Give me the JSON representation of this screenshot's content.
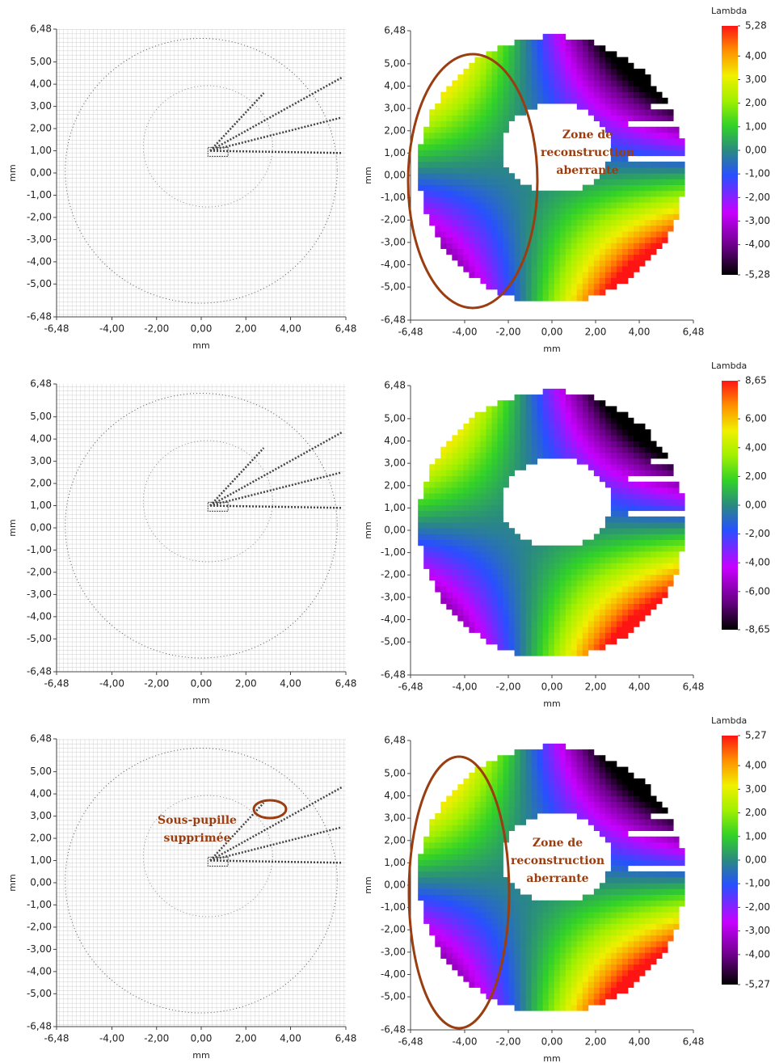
{
  "chart_data": [
    {
      "type": "vector-grid",
      "xlabel": "mm",
      "ylabel": "mm",
      "xlim": [
        -6.48,
        6.48
      ],
      "ylim": [
        -6.48,
        6.48
      ],
      "xticks": [
        {
          "value": -6.48,
          "label": "-6,48"
        },
        {
          "value": -4,
          "label": "-4,00"
        },
        {
          "value": -2,
          "label": "-2,00"
        },
        {
          "value": 0,
          "label": "0,00"
        },
        {
          "value": 2,
          "label": "2,00"
        },
        {
          "value": 4,
          "label": "4,00"
        },
        {
          "value": 6.48,
          "label": "6,48"
        }
      ],
      "yticks": [
        {
          "value": -6.48,
          "label": "-6,48"
        },
        {
          "value": -5,
          "label": "-5,00"
        },
        {
          "value": -4,
          "label": "-4,00"
        },
        {
          "value": -3,
          "label": "-3,00"
        },
        {
          "value": -2,
          "label": "-2,00"
        },
        {
          "value": -1,
          "label": "-1,00"
        },
        {
          "value": 0,
          "label": "0,00"
        },
        {
          "value": 1,
          "label": "1,00"
        },
        {
          "value": 2,
          "label": "2,00"
        },
        {
          "value": 3,
          "label": "3,00"
        },
        {
          "value": 4,
          "label": "4,00"
        },
        {
          "value": 5,
          "label": "5,00"
        },
        {
          "value": 6.48,
          "label": "6,48"
        }
      ]
    },
    {
      "type": "heatmap",
      "xlabel": "mm",
      "ylabel": "mm",
      "xlim": [
        -6.48,
        6.48
      ],
      "ylim": [
        -6.48,
        6.48
      ],
      "xticks": [
        {
          "value": -6.48,
          "label": "-6,48"
        },
        {
          "value": -4,
          "label": "-4,00"
        },
        {
          "value": -2,
          "label": "-2,00"
        },
        {
          "value": 0,
          "label": "0,00"
        },
        {
          "value": 2,
          "label": "2,00"
        },
        {
          "value": 4,
          "label": "4,00"
        },
        {
          "value": 6.48,
          "label": "6,48"
        }
      ],
      "yticks": [
        {
          "value": -6.48,
          "label": "-6,48"
        },
        {
          "value": -5,
          "label": "-5,00"
        },
        {
          "value": -4,
          "label": "-4,00"
        },
        {
          "value": -3,
          "label": "-3,00"
        },
        {
          "value": -2,
          "label": "-2,00"
        },
        {
          "value": -1,
          "label": "-1,00"
        },
        {
          "value": 0,
          "label": "0,00"
        },
        {
          "value": 1,
          "label": "1,00"
        },
        {
          "value": 2,
          "label": "2,00"
        },
        {
          "value": 3,
          "label": "3,00"
        },
        {
          "value": 4,
          "label": "4,00"
        },
        {
          "value": 5,
          "label": "5,00"
        },
        {
          "value": 6.48,
          "label": "6,48"
        }
      ],
      "colorbar_title": "Lambda",
      "clim": [
        -5.28,
        5.28
      ],
      "cticks": [
        {
          "value": 5.28,
          "label": "5,28"
        },
        {
          "value": 4,
          "label": "4,00"
        },
        {
          "value": 3,
          "label": "3,00"
        },
        {
          "value": 2,
          "label": "2,00"
        },
        {
          "value": 1,
          "label": "1,00"
        },
        {
          "value": 0,
          "label": "0,00"
        },
        {
          "value": -1,
          "label": "-1,00"
        },
        {
          "value": -2,
          "label": "-2,00"
        },
        {
          "value": -3,
          "label": "-3,00"
        },
        {
          "value": -4,
          "label": "-4,00"
        },
        {
          "value": -5.28,
          "label": "-5,28"
        }
      ],
      "annotation": [
        "Zone de",
        "reconstruction",
        "aberrante"
      ]
    },
    {
      "type": "vector-grid",
      "xlabel": "mm",
      "ylabel": "mm",
      "xlim": [
        -6.48,
        6.48
      ],
      "ylim": [
        -6.48,
        6.48
      ],
      "xticks": [
        {
          "value": -6.48,
          "label": "-6,48"
        },
        {
          "value": -4,
          "label": "-4,00"
        },
        {
          "value": -2,
          "label": "-2,00"
        },
        {
          "value": 0,
          "label": "0,00"
        },
        {
          "value": 2,
          "label": "2,00"
        },
        {
          "value": 4,
          "label": "4,00"
        },
        {
          "value": 6.48,
          "label": "6,48"
        }
      ],
      "yticks": [
        {
          "value": -6.48,
          "label": "-6,48"
        },
        {
          "value": -5,
          "label": "-5,00"
        },
        {
          "value": -4,
          "label": "-4,00"
        },
        {
          "value": -3,
          "label": "-3,00"
        },
        {
          "value": -2,
          "label": "-2,00"
        },
        {
          "value": -1,
          "label": "-1,00"
        },
        {
          "value": 0,
          "label": "0,00"
        },
        {
          "value": 1,
          "label": "1,00"
        },
        {
          "value": 2,
          "label": "2,00"
        },
        {
          "value": 3,
          "label": "3,00"
        },
        {
          "value": 4,
          "label": "4,00"
        },
        {
          "value": 5,
          "label": "5,00"
        },
        {
          "value": 6.48,
          "label": "6,48"
        }
      ]
    },
    {
      "type": "heatmap",
      "xlabel": "mm",
      "ylabel": "mm",
      "xlim": [
        -6.48,
        6.48
      ],
      "ylim": [
        -6.48,
        6.48
      ],
      "xticks": [
        {
          "value": -6.48,
          "label": "-6,48"
        },
        {
          "value": -4,
          "label": "-4,00"
        },
        {
          "value": -2,
          "label": "-2,00"
        },
        {
          "value": 0,
          "label": "0,00"
        },
        {
          "value": 2,
          "label": "2,00"
        },
        {
          "value": 4,
          "label": "4,00"
        },
        {
          "value": 6.48,
          "label": "6,48"
        }
      ],
      "yticks": [
        {
          "value": -6.48,
          "label": "-6,48"
        },
        {
          "value": -5,
          "label": "-5,00"
        },
        {
          "value": -4,
          "label": "-4,00"
        },
        {
          "value": -3,
          "label": "-3,00"
        },
        {
          "value": -2,
          "label": "-2,00"
        },
        {
          "value": -1,
          "label": "-1,00"
        },
        {
          "value": 0,
          "label": "0,00"
        },
        {
          "value": 1,
          "label": "1,00"
        },
        {
          "value": 2,
          "label": "2,00"
        },
        {
          "value": 3,
          "label": "3,00"
        },
        {
          "value": 4,
          "label": "4,00"
        },
        {
          "value": 5,
          "label": "5,00"
        },
        {
          "value": 6.48,
          "label": "6,48"
        }
      ],
      "colorbar_title": "Lambda",
      "clim": [
        -8.65,
        8.65
      ],
      "cticks": [
        {
          "value": 8.65,
          "label": "8,65"
        },
        {
          "value": 6,
          "label": "6,00"
        },
        {
          "value": 4,
          "label": "4,00"
        },
        {
          "value": 2,
          "label": "2,00"
        },
        {
          "value": 0,
          "label": "0,00"
        },
        {
          "value": -2,
          "label": "-2,00"
        },
        {
          "value": -4,
          "label": "-4,00"
        },
        {
          "value": -6,
          "label": "-6,00"
        },
        {
          "value": -8.65,
          "label": "-8,65"
        }
      ]
    },
    {
      "type": "vector-grid",
      "xlabel": "mm",
      "ylabel": "mm",
      "xlim": [
        -6.48,
        6.48
      ],
      "ylim": [
        -6.48,
        6.48
      ],
      "xticks": [
        {
          "value": -6.48,
          "label": "-6,48"
        },
        {
          "value": -4,
          "label": "-4,00"
        },
        {
          "value": -2,
          "label": "-2,00"
        },
        {
          "value": 0,
          "label": "0,00"
        },
        {
          "value": 2,
          "label": "2,00"
        },
        {
          "value": 4,
          "label": "4,00"
        },
        {
          "value": 6.48,
          "label": "6,48"
        }
      ],
      "yticks": [
        {
          "value": -6.48,
          "label": "-6,48"
        },
        {
          "value": -5,
          "label": "-5,00"
        },
        {
          "value": -4,
          "label": "-4,00"
        },
        {
          "value": -3,
          "label": "-3,00"
        },
        {
          "value": -2,
          "label": "-2,00"
        },
        {
          "value": -1,
          "label": "-1,00"
        },
        {
          "value": 0,
          "label": "0,00"
        },
        {
          "value": 1,
          "label": "1,00"
        },
        {
          "value": 2,
          "label": "2,00"
        },
        {
          "value": 3,
          "label": "3,00"
        },
        {
          "value": 4,
          "label": "4,00"
        },
        {
          "value": 5,
          "label": "5,00"
        },
        {
          "value": 6.48,
          "label": "6,48"
        }
      ],
      "annotation": [
        "Sous-pupille",
        "supprimée"
      ]
    },
    {
      "type": "heatmap",
      "xlabel": "mm",
      "ylabel": "mm",
      "xlim": [
        -6.48,
        6.48
      ],
      "ylim": [
        -6.48,
        6.48
      ],
      "xticks": [
        {
          "value": -6.48,
          "label": "-6,48"
        },
        {
          "value": -4,
          "label": "-4,00"
        },
        {
          "value": -2,
          "label": "-2,00"
        },
        {
          "value": 0,
          "label": "0,00"
        },
        {
          "value": 2,
          "label": "2,00"
        },
        {
          "value": 4,
          "label": "4,00"
        },
        {
          "value": 6.48,
          "label": "6,48"
        }
      ],
      "yticks": [
        {
          "value": -6.48,
          "label": "-6,48"
        },
        {
          "value": -5,
          "label": "-5,00"
        },
        {
          "value": -4,
          "label": "-4,00"
        },
        {
          "value": -3,
          "label": "-3,00"
        },
        {
          "value": -2,
          "label": "-2,00"
        },
        {
          "value": -1,
          "label": "-1,00"
        },
        {
          "value": 0,
          "label": "0,00"
        },
        {
          "value": 1,
          "label": "1,00"
        },
        {
          "value": 2,
          "label": "2,00"
        },
        {
          "value": 3,
          "label": "3,00"
        },
        {
          "value": 4,
          "label": "4,00"
        },
        {
          "value": 5,
          "label": "5,00"
        },
        {
          "value": 6.48,
          "label": "6,48"
        }
      ],
      "colorbar_title": "Lambda",
      "clim": [
        -5.27,
        5.27
      ],
      "cticks": [
        {
          "value": 5.27,
          "label": "5,27"
        },
        {
          "value": 4,
          "label": "4,00"
        },
        {
          "value": 3,
          "label": "3,00"
        },
        {
          "value": 2,
          "label": "2,00"
        },
        {
          "value": 1,
          "label": "1,00"
        },
        {
          "value": 0,
          "label": "0,00"
        },
        {
          "value": -1,
          "label": "-1,00"
        },
        {
          "value": -2,
          "label": "-2,00"
        },
        {
          "value": -3,
          "label": "-3,00"
        },
        {
          "value": -4,
          "label": "-4,00"
        },
        {
          "value": -5.27,
          "label": "-5,27"
        }
      ],
      "annotation": [
        "Zone de",
        "reconstruction",
        "aberrante"
      ]
    }
  ]
}
